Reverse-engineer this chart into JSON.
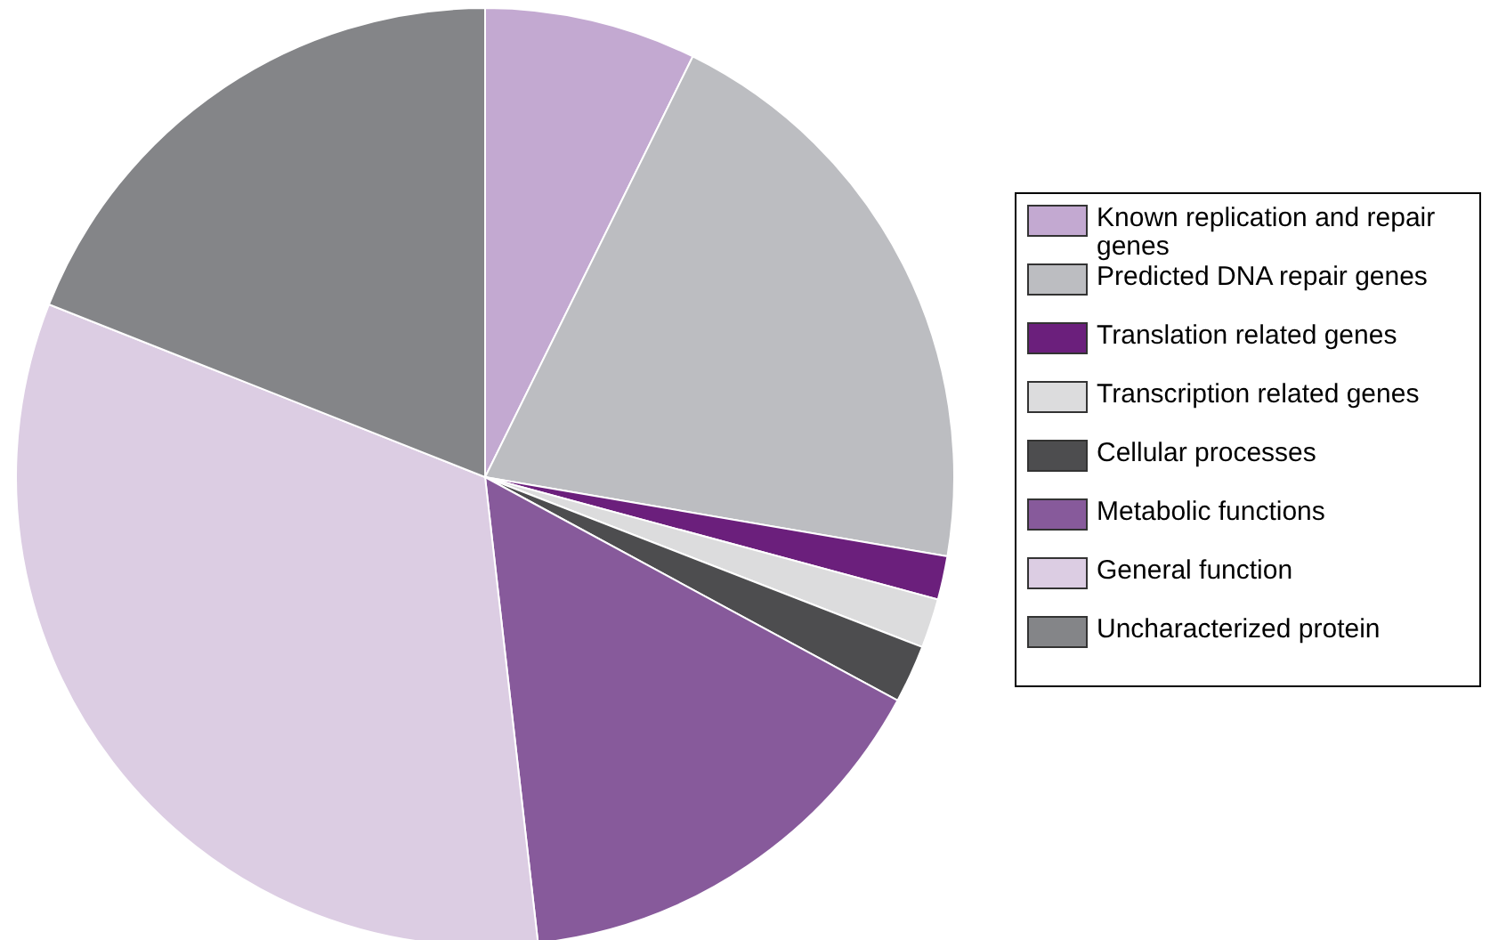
{
  "chart_data": {
    "type": "pie",
    "categories": [
      "Known replication and repair genes",
      "Predicted DNA repair genes",
      "Translation related genes",
      "Transcription related genes",
      "Cellular processes",
      "Metabolic functions",
      "General function",
      "Uncharacterized protein"
    ],
    "values": [
      7.3,
      20.4,
      1.5,
      1.7,
      2,
      15.3,
      32.8,
      19
    ],
    "colors": [
      "#c3a9d1",
      "#bcbdc1",
      "#6b1f7c",
      "#dcdcdd",
      "#4d4d4f",
      "#875a9b",
      "#dccde3",
      "#848588"
    ],
    "legend": "right"
  }
}
